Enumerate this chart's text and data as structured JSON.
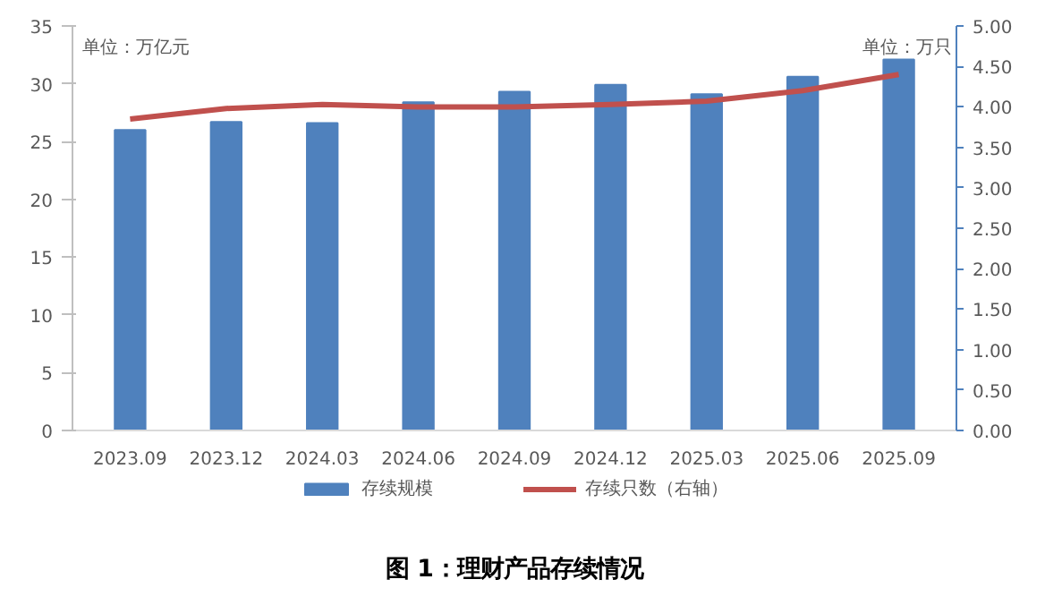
{
  "chart_data": {
    "type": "bar",
    "title": "图 1：理财产品存续情况",
    "categories": [
      "2023.09",
      "2023.12",
      "2024.03",
      "2024.06",
      "2024.09",
      "2024.12",
      "2025.03",
      "2025.06",
      "2025.09"
    ],
    "series": [
      {
        "name": "存续规模",
        "color": "#4f81bd",
        "values": [
          26.0,
          26.7,
          26.6,
          28.4,
          29.3,
          29.9,
          29.1,
          30.6,
          32.1
        ]
      },
      {
        "name": "存续只数（右轴）",
        "type": "line",
        "axis": "y2",
        "color": "#c0504d",
        "values": [
          3.85,
          3.98,
          4.03,
          4.0,
          4.0,
          4.03,
          4.07,
          4.2,
          4.4
        ]
      }
    ],
    "ylim": [
      0,
      35
    ],
    "yticks": [
      0,
      5,
      10,
      15,
      20,
      25,
      30,
      35
    ],
    "y2lim": [
      0,
      5
    ],
    "y2ticks": [
      {
        "value": 0,
        "label": "0.00"
      },
      {
        "value": 0.5,
        "label": "0.50"
      },
      {
        "value": 1,
        "label": "1.00"
      },
      {
        "value": 1.5,
        "label": "1.50"
      },
      {
        "value": 2,
        "label": "2.00"
      },
      {
        "value": 2.5,
        "label": "2.50"
      },
      {
        "value": 3,
        "label": "3.00"
      },
      {
        "value": 3.5,
        "label": "3.50"
      },
      {
        "value": 4,
        "label": "4.00"
      },
      {
        "value": 4.5,
        "label": "4.50"
      },
      {
        "value": 5,
        "label": "5.00"
      }
    ],
    "annotations": [
      "单位：万亿元",
      "单位：万只"
    ],
    "legend": "bottom",
    "grid": false
  }
}
